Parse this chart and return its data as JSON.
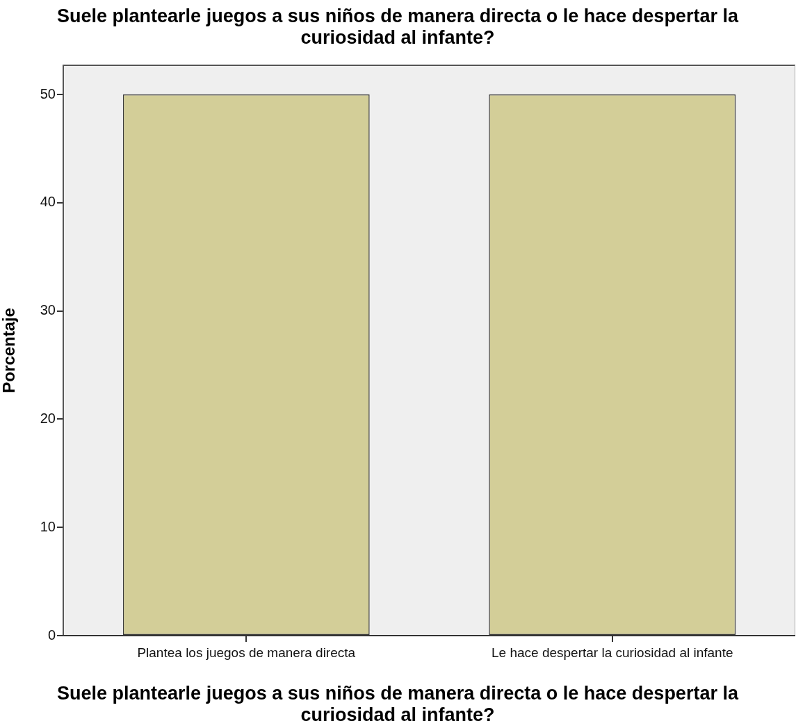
{
  "chart_data": {
    "type": "bar",
    "title": "Suele plantearle juegos a sus niños de manera directa o le hace despertar la curiosidad al infante?",
    "xlabel": "Suele plantearle juegos a sus niños de manera directa o le hace despertar la curiosidad al infante?",
    "ylabel": "Porcentaje",
    "categories": [
      "Plantea los juegos de manera directa",
      "Le hace despertar la curiosidad al infante"
    ],
    "values": [
      50,
      50
    ],
    "color": "#d3ce98",
    "ylim": [
      0,
      52.7
    ],
    "yticks": [
      0,
      10,
      20,
      30,
      40,
      50
    ]
  }
}
